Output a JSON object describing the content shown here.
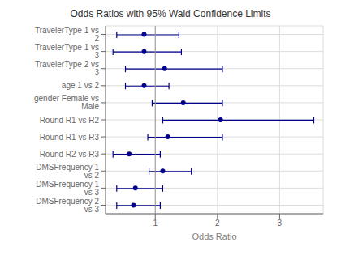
{
  "chart_data": {
    "type": "scatter",
    "orientation": "horizontal",
    "title": "Odds Ratios with 95% Wald Confidence Limits",
    "xlabel": "Odds Ratio",
    "categories": [
      "TravelerType 1 vs 2",
      "TravelerType 1 vs 3",
      "TravelerType 2 vs 3",
      "age 1 vs 2",
      "gender Female vs Male",
      "Round R1 vs R2",
      "Round R1 vs R3",
      "Round R2 vs R3",
      "DMSFrequency 1 vs 2",
      "DMSFrequency 1 vs 3",
      "DMSFrequency 2 vs 3"
    ],
    "values": [
      0.82,
      0.82,
      1.15,
      0.82,
      1.45,
      2.05,
      1.2,
      0.58,
      1.12,
      0.68,
      0.65
    ],
    "ci_low": [
      0.38,
      0.32,
      0.52,
      0.52,
      0.95,
      1.12,
      0.88,
      0.32,
      0.9,
      0.38,
      0.38
    ],
    "ci_high": [
      1.38,
      1.42,
      2.08,
      1.22,
      2.08,
      3.55,
      2.08,
      1.08,
      1.58,
      1.12,
      1.08
    ],
    "color": "#00008B",
    "xlim": [
      0.2,
      3.7
    ],
    "xticks": [
      1,
      2,
      3
    ],
    "grid": true,
    "reference_line": 1
  }
}
